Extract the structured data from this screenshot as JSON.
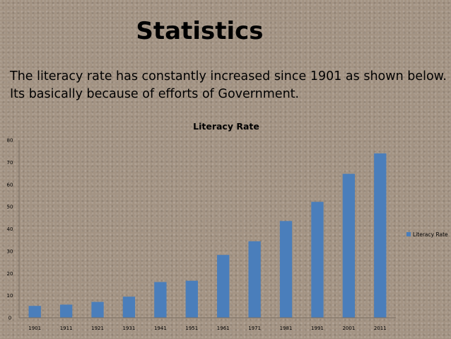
{
  "slide": {
    "title": "Statistics",
    "text_lines": [
      "The literacy rate has constantly increased since 1901 as shown below.",
      "Its  basically because of efforts of Government."
    ]
  },
  "chart_data": {
    "type": "bar",
    "title": "Literacy Rate",
    "categories": [
      "1901",
      "1911",
      "1921",
      "1931",
      "1941",
      "1951",
      "1961",
      "1971",
      "1981",
      "1991",
      "2001",
      "2011"
    ],
    "series": [
      {
        "name": "Literacy Rate",
        "values": [
          5.35,
          5.92,
          7.16,
          9.5,
          16.1,
          16.67,
          28.3,
          34.45,
          43.57,
          52.21,
          64.83,
          74.04
        ]
      }
    ],
    "ylim": [
      0,
      80
    ],
    "yticks": [
      0,
      10,
      20,
      30,
      40,
      50,
      60,
      70,
      80
    ],
    "xlabel": "",
    "ylabel": "",
    "legend": "right",
    "grid": false,
    "colors": {
      "bar": "#4a7ebb",
      "axis": "#7a6e62",
      "text": "#000000"
    }
  }
}
